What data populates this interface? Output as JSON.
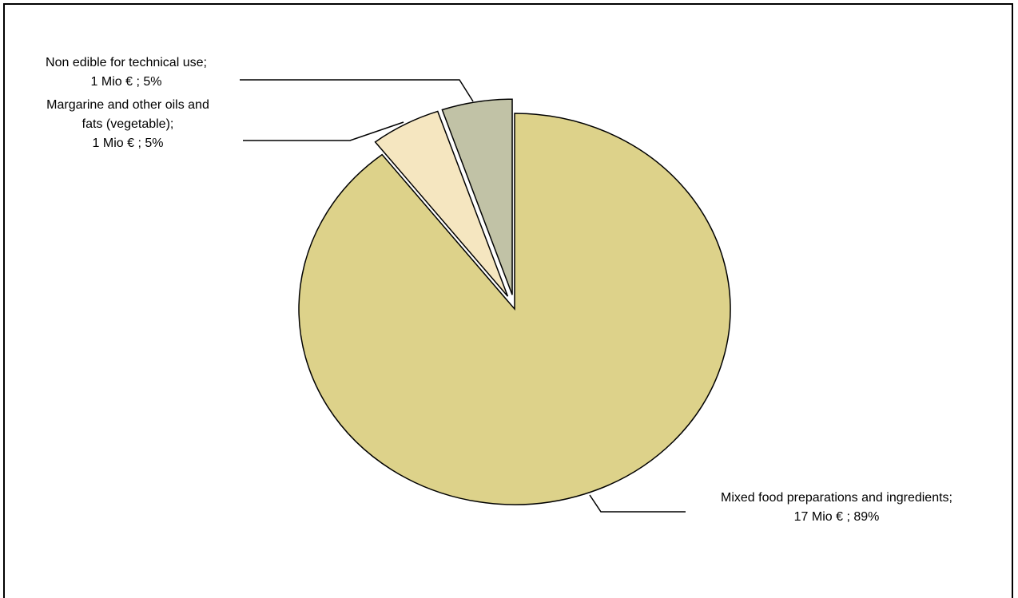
{
  "chart_data": {
    "type": "pie",
    "title": "",
    "unit": "Mio €",
    "slices": [
      {
        "label_lines": [
          "Mixed food preparations and ingredients;",
          "17 Mio € ; 89%"
        ],
        "value": 17,
        "percent": 89,
        "color": "#DDD28A"
      },
      {
        "label_lines": [
          "Margarine and other oils and",
          "fats (vegetable);",
          "1 Mio € ; 5%"
        ],
        "value": 1,
        "percent": 5,
        "color": "#F5E6C0"
      },
      {
        "label_lines": [
          "Non edible for technical use;",
          "1 Mio € ; 5%"
        ],
        "value": 1,
        "percent": 5,
        "color": "#C1C2A6"
      }
    ],
    "legend": "none",
    "labels": "outside-with-leader-lines",
    "exploded": true
  }
}
